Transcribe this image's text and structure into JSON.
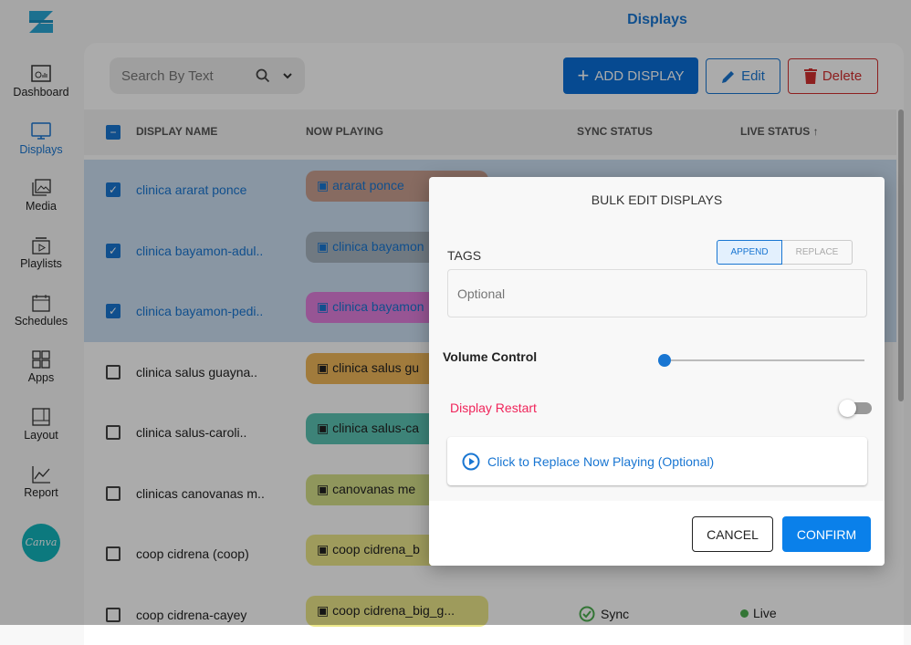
{
  "header": {
    "title": "Displays"
  },
  "sidebar": {
    "items": [
      {
        "label": "Dashboard",
        "icon": "dashboard-icon"
      },
      {
        "label": "Displays",
        "icon": "monitor-icon",
        "active": true
      },
      {
        "label": "Media",
        "icon": "media-icon"
      },
      {
        "label": "Playlists",
        "icon": "playlist-icon"
      },
      {
        "label": "Schedules",
        "icon": "calendar-icon"
      },
      {
        "label": "Apps",
        "icon": "apps-icon"
      },
      {
        "label": "Layout",
        "icon": "layout-icon"
      },
      {
        "label": "Report",
        "icon": "chart-icon"
      }
    ],
    "canva": "Canva"
  },
  "toolbar": {
    "search_placeholder": "Search By Text",
    "add": "ADD DISPLAY",
    "edit": "Edit",
    "delete": "Delete"
  },
  "table": {
    "columns": [
      "DISPLAY NAME",
      "NOW PLAYING",
      "SYNC STATUS",
      "LIVE STATUS"
    ],
    "rows": [
      {
        "name": "clinica ararat ponce",
        "playing": "ararat ponce",
        "selected": true,
        "color": "#c9a091"
      },
      {
        "name": "clinica bayamon-adul..",
        "playing": "clinica bayamon",
        "selected": true,
        "color": "#a8b5c0"
      },
      {
        "name": "clinica bayamon-pedi..",
        "playing": "clinica bayamon",
        "selected": true,
        "color": "#e27fdd"
      },
      {
        "name": "clinica salus guayna..",
        "playing": "clinica salus gu",
        "selected": false,
        "color": "#f0b85a"
      },
      {
        "name": "clinica salus-caroli..",
        "playing": "clinica salus-ca",
        "selected": false,
        "color": "#5cc4b3"
      },
      {
        "name": "clinicas canovanas m..",
        "playing": "canovanas me",
        "selected": false,
        "color": "#d6e08a"
      },
      {
        "name": "coop cidrena (coop)",
        "playing": "coop cidrena_b",
        "selected": false,
        "color": "#ece88a"
      },
      {
        "name": "coop cidrena-cayey",
        "playing": "coop cidrena_big_g...",
        "selected": false,
        "color": "#ece88a",
        "sync": "Sync",
        "live": "Live"
      }
    ]
  },
  "modal": {
    "title": "BULK EDIT DISPLAYS",
    "tags_label": "TAGS",
    "append": "APPEND",
    "replace": "REPLACE",
    "tags_placeholder": "Optional",
    "volume_label": "Volume Control",
    "volume": 0,
    "restart_label": "Display Restart",
    "restart_on": false,
    "replace_now_playing": "Click to Replace Now Playing (Optional)",
    "cancel": "CANCEL",
    "confirm": "CONFIRM"
  },
  "colors": {
    "accent": "#1976d2",
    "danger": "#d32f2f",
    "restart": "#f0245a"
  }
}
